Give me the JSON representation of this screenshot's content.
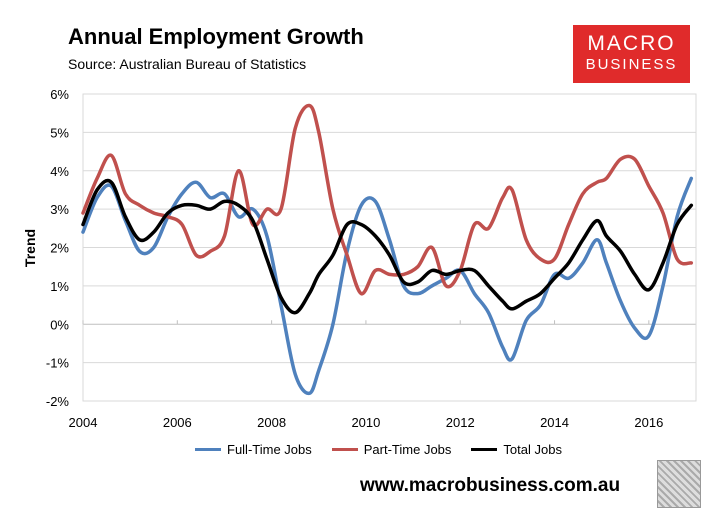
{
  "header": {
    "title": "Annual Employment Growth",
    "subtitle": "Source: Australian Bureau of Statistics"
  },
  "logo": {
    "line1": "MACRO",
    "line2": "BUSINESS",
    "color": "#e02b2b"
  },
  "footer": {
    "url": "www.macrobusiness.com.au"
  },
  "chart_data": {
    "type": "line",
    "title": "Annual Employment Growth",
    "xlabel": "",
    "ylabel": "Trend",
    "xlim": [
      2004,
      2017
    ],
    "ylim": [
      -2,
      6
    ],
    "x_ticks": [
      "2004",
      "2006",
      "2008",
      "2010",
      "2012",
      "2014",
      "2016"
    ],
    "y_ticks": [
      "-2%",
      "-1%",
      "0%",
      "1%",
      "2%",
      "3%",
      "4%",
      "5%",
      "6%"
    ],
    "grid": "horizontal",
    "legend_position": "bottom",
    "series": [
      {
        "name": "Full-Time Jobs",
        "color": "#4f81bd",
        "x": [
          2004.0,
          2004.3,
          2004.6,
          2004.9,
          2005.2,
          2005.5,
          2005.8,
          2006.1,
          2006.4,
          2006.7,
          2007.0,
          2007.3,
          2007.6,
          2007.9,
          2008.2,
          2008.5,
          2008.8,
          2009.0,
          2009.3,
          2009.6,
          2009.9,
          2010.2,
          2010.5,
          2010.8,
          2011.1,
          2011.4,
          2011.7,
          2012.0,
          2012.3,
          2012.6,
          2012.9,
          2013.1,
          2013.4,
          2013.7,
          2014.0,
          2014.3,
          2014.6,
          2014.9,
          2015.1,
          2015.4,
          2015.7,
          2016.0,
          2016.3,
          2016.6,
          2016.9
        ],
        "values": [
          2.4,
          3.3,
          3.6,
          2.7,
          1.9,
          2.0,
          2.8,
          3.4,
          3.7,
          3.3,
          3.4,
          2.8,
          3.0,
          2.3,
          0.5,
          -1.3,
          -1.8,
          -1.2,
          0.0,
          1.9,
          3.1,
          3.2,
          2.2,
          1.0,
          0.8,
          1.0,
          1.2,
          1.4,
          0.8,
          0.3,
          -0.6,
          -0.9,
          0.1,
          0.5,
          1.3,
          1.2,
          1.6,
          2.2,
          1.6,
          0.6,
          -0.1,
          -0.3,
          1.0,
          2.8,
          3.8
        ]
      },
      {
        "name": "Part-Time Jobs",
        "color": "#c0504d",
        "x": [
          2004.0,
          2004.3,
          2004.6,
          2004.9,
          2005.2,
          2005.5,
          2005.8,
          2006.1,
          2006.4,
          2006.7,
          2007.0,
          2007.3,
          2007.6,
          2007.9,
          2008.2,
          2008.5,
          2008.8,
          2009.0,
          2009.3,
          2009.6,
          2009.9,
          2010.2,
          2010.5,
          2010.8,
          2011.1,
          2011.4,
          2011.7,
          2012.0,
          2012.3,
          2012.6,
          2012.9,
          2013.1,
          2013.4,
          2013.7,
          2014.0,
          2014.3,
          2014.6,
          2014.9,
          2015.1,
          2015.4,
          2015.7,
          2016.0,
          2016.3,
          2016.6,
          2016.9
        ],
        "values": [
          2.9,
          3.8,
          4.4,
          3.4,
          3.1,
          2.9,
          2.8,
          2.6,
          1.8,
          1.9,
          2.3,
          4.0,
          2.6,
          3.0,
          3.0,
          5.1,
          5.7,
          5.0,
          3.0,
          1.8,
          0.8,
          1.4,
          1.3,
          1.3,
          1.5,
          2.0,
          1.0,
          1.4,
          2.6,
          2.5,
          3.3,
          3.5,
          2.2,
          1.7,
          1.7,
          2.6,
          3.4,
          3.7,
          3.8,
          4.3,
          4.3,
          3.6,
          2.9,
          1.7,
          1.6
        ]
      },
      {
        "name": "Total Jobs",
        "color": "#000000",
        "x": [
          2004.0,
          2004.3,
          2004.6,
          2004.9,
          2005.2,
          2005.5,
          2005.8,
          2006.1,
          2006.4,
          2006.7,
          2007.0,
          2007.3,
          2007.6,
          2007.9,
          2008.2,
          2008.5,
          2008.8,
          2009.0,
          2009.3,
          2009.6,
          2009.9,
          2010.2,
          2010.5,
          2010.8,
          2011.1,
          2011.4,
          2011.7,
          2012.0,
          2012.3,
          2012.6,
          2012.9,
          2013.1,
          2013.4,
          2013.7,
          2014.0,
          2014.3,
          2014.6,
          2014.9,
          2015.1,
          2015.4,
          2015.7,
          2016.0,
          2016.3,
          2016.6,
          2016.9
        ],
        "values": [
          2.6,
          3.5,
          3.7,
          2.8,
          2.2,
          2.4,
          2.9,
          3.1,
          3.1,
          3.0,
          3.2,
          3.1,
          2.7,
          1.7,
          0.7,
          0.3,
          0.8,
          1.3,
          1.8,
          2.6,
          2.6,
          2.3,
          1.8,
          1.1,
          1.1,
          1.4,
          1.3,
          1.4,
          1.4,
          1.0,
          0.6,
          0.4,
          0.6,
          0.8,
          1.2,
          1.6,
          2.2,
          2.7,
          2.3,
          1.9,
          1.3,
          0.9,
          1.6,
          2.6,
          3.1
        ]
      }
    ]
  }
}
